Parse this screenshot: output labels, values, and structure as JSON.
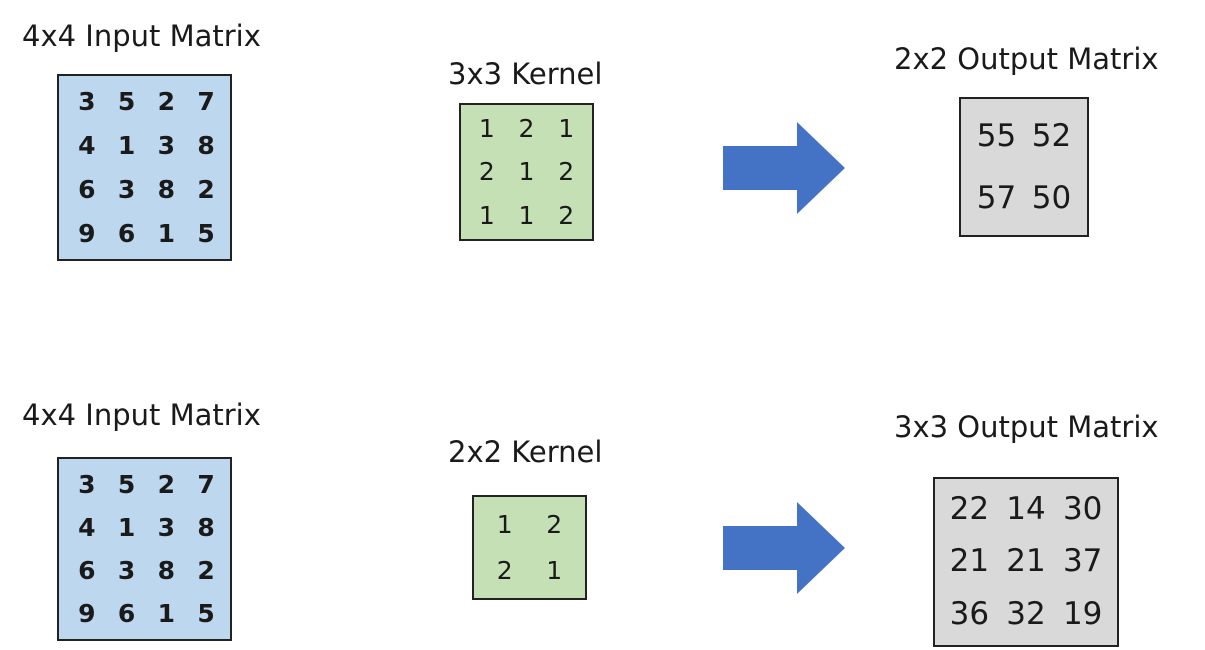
{
  "panels": [
    {
      "input_title": "4x4 Input Matrix",
      "input": [
        [
          "3",
          "5",
          "2",
          "7"
        ],
        [
          "4",
          "1",
          "3",
          "8"
        ],
        [
          "6",
          "3",
          "8",
          "2"
        ],
        [
          "9",
          "6",
          "1",
          "5"
        ]
      ],
      "kernel_title": "3x3 Kernel",
      "kernel": [
        [
          "1",
          "2",
          "1"
        ],
        [
          "2",
          "1",
          "2"
        ],
        [
          "1",
          "1",
          "2"
        ]
      ],
      "output_title": "2x2 Output Matrix",
      "output": [
        [
          "55",
          "52"
        ],
        [
          "57",
          "50"
        ]
      ]
    },
    {
      "input_title": "4x4 Input Matrix",
      "input": [
        [
          "3",
          "5",
          "2",
          "7"
        ],
        [
          "4",
          "1",
          "3",
          "8"
        ],
        [
          "6",
          "3",
          "8",
          "2"
        ],
        [
          "9",
          "6",
          "1",
          "5"
        ]
      ],
      "kernel_title": "2x2 Kernel",
      "kernel": [
        [
          "1",
          "2"
        ],
        [
          "2",
          "1"
        ]
      ],
      "output_title": "3x3 Output Matrix",
      "output": [
        [
          "22",
          "14",
          "30"
        ],
        [
          "21",
          "21",
          "37"
        ],
        [
          "36",
          "32",
          "19"
        ]
      ]
    }
  ],
  "colors": {
    "input_fill": "#bdd7ee",
    "kernel_fill": "#c5e0b4",
    "output_fill": "#d9d9d9",
    "arrow_fill": "#4472c4"
  },
  "icons": {
    "arrow": "right-arrow-icon"
  }
}
